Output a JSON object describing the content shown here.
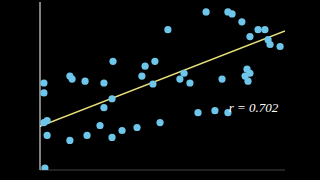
{
  "chart_data": {
    "type": "scatter",
    "color": "#6ec6ea",
    "marker": "circle",
    "tick_labels": false,
    "grid": false,
    "xlim": [
      0,
      10
    ],
    "ylim": [
      0,
      10
    ],
    "yticks": [
      0,
      0.25,
      0.5,
      0.75,
      1,
      1.25,
      1.5,
      1.75,
      2,
      2.25,
      2.5,
      2.75,
      3,
      3.25,
      3.5,
      3.75,
      4,
      4.25,
      4.5,
      4.75,
      5,
      5.25,
      5.5,
      5.75,
      6,
      6.25,
      6.5,
      6.75,
      7,
      7.25,
      7.5,
      7.75,
      8,
      8.25,
      8.5,
      8.75,
      9,
      9.25,
      9.5,
      9.75,
      10
    ],
    "x": [
      0.2,
      0.16,
      0.16,
      0.29,
      0.29,
      0.16,
      1.22,
      1.22,
      1.31,
      1.84,
      1.92,
      2.45,
      2.61,
      2.61,
      2.94,
      2.98,
      2.94,
      3.35,
      3.96,
      4.16,
      4.29,
      4.61,
      4.69,
      4.9,
      5.22,
      5.71,
      5.88,
      6.12,
      6.45,
      6.78,
      7.14,
      7.43,
      7.67,
      7.84,
      8.24,
      8.37,
      8.45,
      8.49,
      8.57,
      8.57,
      8.9,
      9.18,
      9.31,
      9.39,
      9.8,
      7.67
    ],
    "y": [
      0.12,
      5.18,
      4.59,
      2.94,
      2.06,
      2.82,
      1.76,
      5.59,
      5.41,
      5.29,
      2.06,
      2.65,
      3.71,
      5.18,
      4.24,
      6.47,
      1.94,
      2.35,
      2.53,
      5.59,
      6.18,
      5.12,
      6.47,
      2.82,
      8.35,
      5.41,
      5.76,
      5.18,
      3.41,
      9.41,
      3.53,
      5.41,
      9.41,
      9.29,
      8.82,
      5.59,
      6,
      5.29,
      5.76,
      7.94,
      8.35,
      8.35,
      7.76,
      7.47,
      7.35,
      3.41
    ],
    "fit_line": {
      "x": [
        0,
        10
      ],
      "y": [
        2.6,
        8.28
      ],
      "color": "#e8e07a"
    },
    "annotations": [
      {
        "text": "r = 0.702",
        "x": 7.5,
        "y": 3.7
      }
    ]
  }
}
